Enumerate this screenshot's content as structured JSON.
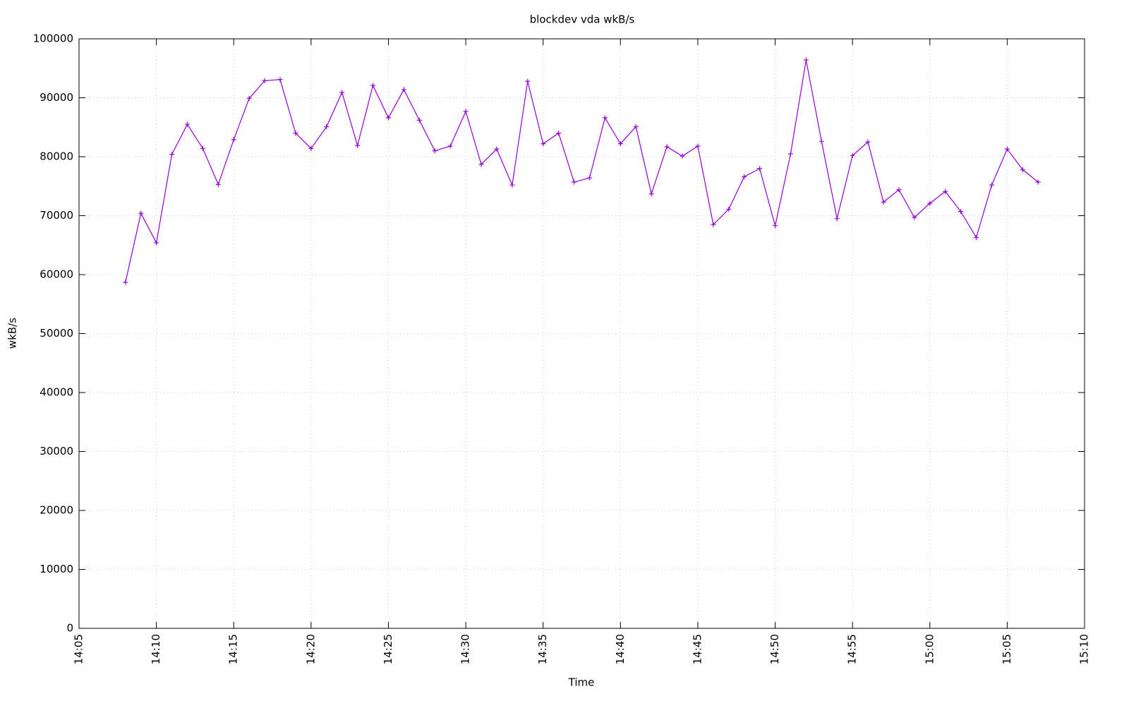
{
  "chart_data": {
    "type": "line",
    "title": "blockdev vda wkB/s",
    "x_label": "Time",
    "y_label": "wkB/s",
    "x": [
      "14:08",
      "14:09",
      "14:10",
      "14:11",
      "14:12",
      "14:13",
      "14:14",
      "14:15",
      "14:16",
      "14:17",
      "14:18",
      "14:19",
      "14:20",
      "14:21",
      "14:22",
      "14:23",
      "14:24",
      "14:25",
      "14:26",
      "14:27",
      "14:28",
      "14:29",
      "14:30",
      "14:31",
      "14:32",
      "14:33",
      "14:34",
      "14:35",
      "14:36",
      "14:37",
      "14:38",
      "14:39",
      "14:40",
      "14:41",
      "14:42",
      "14:43",
      "14:44",
      "14:45",
      "14:46",
      "14:47",
      "14:48",
      "14:49",
      "14:50",
      "14:51",
      "14:52",
      "14:53",
      "14:54",
      "14:55",
      "14:56",
      "14:57",
      "14:58",
      "14:59",
      "15:00",
      "15:01",
      "15:02",
      "15:03",
      "15:04",
      "15:05",
      "15:06",
      "15:07"
    ],
    "values": [
      58700,
      70400,
      65400,
      80400,
      85500,
      81400,
      75300,
      82900,
      89900,
      92900,
      93100,
      84000,
      81400,
      85100,
      90900,
      81900,
      92100,
      86600,
      91400,
      86200,
      81000,
      81800,
      87700,
      78700,
      81300,
      75200,
      92800,
      82200,
      84000,
      75700,
      76400,
      86600,
      82200,
      85100,
      73700,
      81700,
      80100,
      81800,
      68500,
      71100,
      76600,
      78000,
      68300,
      80500,
      96400,
      82600,
      69500,
      80200,
      82500,
      72300,
      74400,
      69700,
      72100,
      74100,
      70700,
      66300,
      75200,
      81300,
      77800,
      75700
    ],
    "color": "#9400d3",
    "xlim": [
      "14:05",
      "15:10"
    ],
    "xticks": [
      "14:05",
      "14:10",
      "14:15",
      "14:20",
      "14:25",
      "14:30",
      "14:35",
      "14:40",
      "14:45",
      "14:50",
      "14:55",
      "15:00",
      "15:05",
      "15:10"
    ],
    "ylim": [
      0,
      100000
    ],
    "yticks": [
      0,
      10000,
      20000,
      30000,
      40000,
      50000,
      60000,
      70000,
      80000,
      90000,
      100000
    ],
    "grid": true
  }
}
